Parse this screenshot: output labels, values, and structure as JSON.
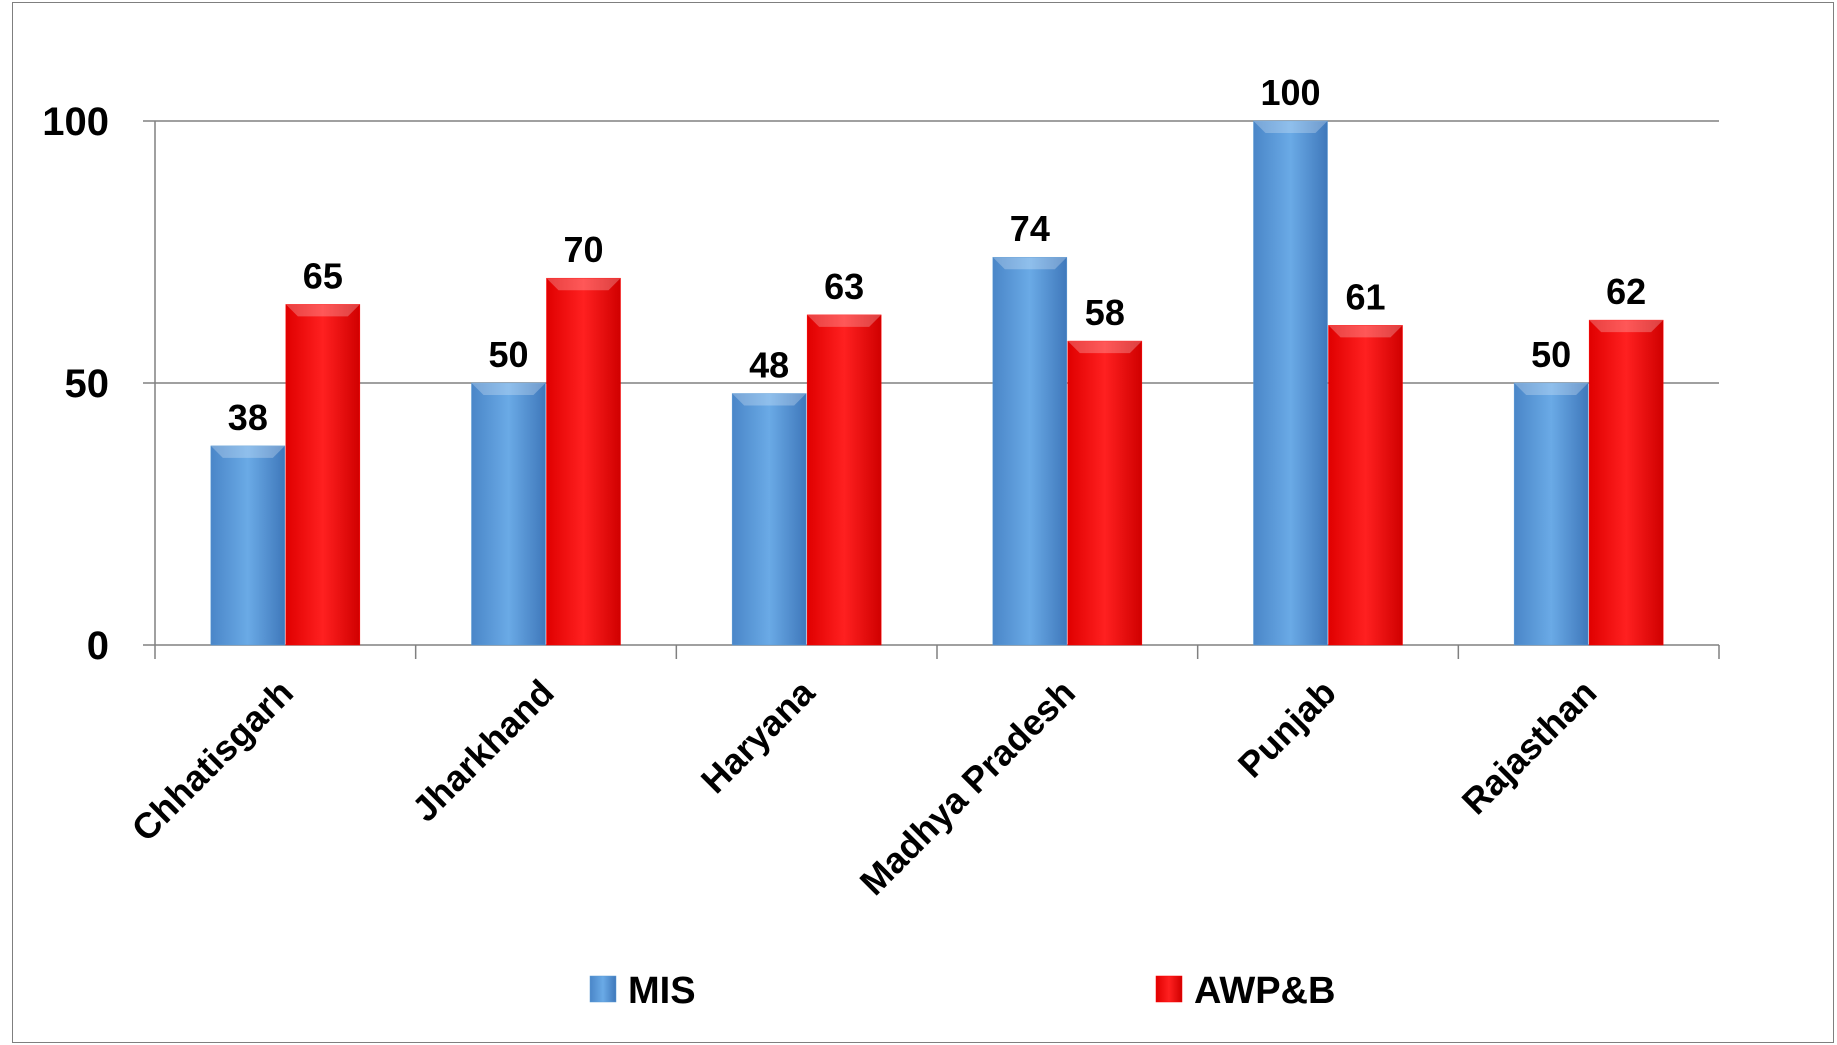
{
  "chart_data": {
    "type": "bar",
    "categories": [
      "Chhatisgarh",
      "Jharkhand",
      "Haryana",
      "Madhya Pradesh",
      "Punjab",
      "Rajasthan"
    ],
    "series": [
      {
        "name": "MIS",
        "values": [
          38,
          50,
          48,
          74,
          100,
          50
        ],
        "color": "#5b9bd5"
      },
      {
        "name": "AWP&B",
        "values": [
          65,
          70,
          63,
          58,
          61,
          62
        ],
        "color": "#ff0000"
      }
    ],
    "yticks": [
      0,
      50,
      100
    ],
    "ylim": [
      0,
      100
    ],
    "grid": true,
    "legend_position": "bottom",
    "title": "",
    "xlabel": "",
    "ylabel": ""
  }
}
